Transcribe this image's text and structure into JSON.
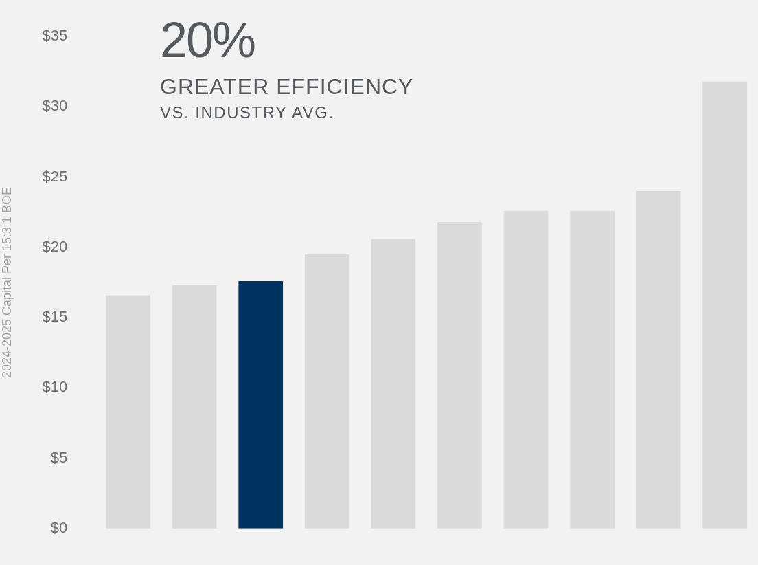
{
  "chart_data": {
    "type": "bar",
    "ylabel": "2024-2025 Capital Per 15:3:1 BOE",
    "annotations": [
      "20%",
      "GREATER EFFICIENCY",
      "VS. INDUSTRY AVG."
    ],
    "categories": [
      null,
      null,
      null,
      null,
      null,
      null,
      null,
      null,
      null,
      null
    ],
    "values": [
      16.6,
      17.3,
      17.6,
      19.5,
      20.6,
      21.8,
      22.6,
      22.6,
      24.0,
      31.8
    ],
    "colors": [
      "#d9dbda",
      "#d9dbda",
      "#003360",
      "#d9dbda",
      "#d9dbda",
      "#d9dbda",
      "#d9dbda",
      "#d9dbda",
      "#d9dbda",
      "#d9dbda"
    ],
    "ylim": [
      0,
      35
    ],
    "yticks": [
      {
        "value": 0,
        "label": "$0"
      },
      {
        "value": 5,
        "label": "$5"
      },
      {
        "value": 10,
        "label": "$10"
      },
      {
        "value": 15,
        "label": "$15"
      },
      {
        "value": 20,
        "label": "$20"
      },
      {
        "value": 25,
        "label": "$25"
      },
      {
        "value": 30,
        "label": "$30"
      },
      {
        "value": 35,
        "label": "$35"
      }
    ],
    "grid": false,
    "legend": false
  }
}
